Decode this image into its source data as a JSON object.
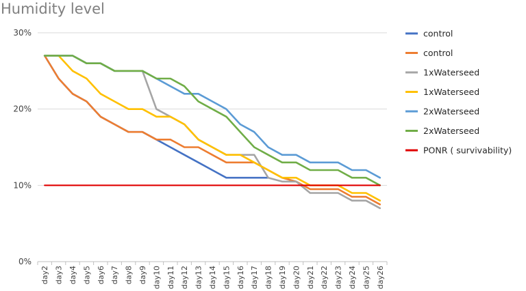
{
  "chart_data": {
    "type": "line",
    "title": "Humidity level",
    "xlabel": "",
    "ylabel": "",
    "ylim": [
      0,
      30
    ],
    "yticks": [
      "0%",
      "10%",
      "20%",
      "30%"
    ],
    "ytick_values": [
      0,
      10,
      20,
      30
    ],
    "grid": true,
    "legend_position": "right",
    "categories": [
      "day2",
      "day3",
      "day4",
      "day5",
      "day6",
      "day7",
      "day8",
      "day9",
      "day10",
      "day11",
      "day12",
      "day13",
      "day14",
      "day15",
      "day16",
      "day17",
      "day18",
      "day19",
      "day20",
      "day21",
      "day22",
      "day23",
      "day24",
      "day25",
      "day26"
    ],
    "series": [
      {
        "name": "control",
        "color": "#4472c4",
        "values": [
          27,
          24,
          22,
          21,
          19,
          18,
          17,
          17,
          16,
          15,
          14,
          13,
          12,
          11,
          11,
          11,
          11,
          null,
          null,
          null,
          null,
          null,
          null,
          null,
          null
        ]
      },
      {
        "name": "control",
        "color": "#ed7d31",
        "values": [
          27,
          24,
          22,
          21,
          19,
          18,
          17,
          17,
          16,
          16,
          15,
          15,
          14,
          13,
          13,
          13,
          12,
          11,
          10.5,
          9.5,
          9.5,
          9.5,
          8.5,
          8.5,
          7.5
        ]
      },
      {
        "name": "1xWaterseed",
        "color": "#a5a5a5",
        "values": [
          27,
          27,
          27,
          26,
          26,
          25,
          25,
          25,
          20,
          19,
          18,
          16,
          15,
          14,
          14,
          14,
          11,
          10.5,
          10.5,
          9,
          9,
          9,
          8,
          8,
          7
        ]
      },
      {
        "name": "1xWaterseed",
        "color": "#ffc000",
        "values": [
          27,
          27,
          25,
          24,
          22,
          21,
          20,
          20,
          19,
          19,
          18,
          16,
          15,
          14,
          14,
          13,
          12,
          11,
          11,
          10,
          10,
          10,
          9,
          9,
          8
        ]
      },
      {
        "name": "2xWaterseed",
        "color": "#5b9bd5",
        "values": [
          27,
          27,
          27,
          26,
          26,
          25,
          25,
          25,
          24,
          23,
          22,
          22,
          21,
          20,
          18,
          17,
          15,
          14,
          14,
          13,
          13,
          13,
          12,
          12,
          11
        ]
      },
      {
        "name": "2xWaterseed",
        "color": "#70ad47",
        "values": [
          27,
          27,
          27,
          26,
          26,
          25,
          25,
          25,
          24,
          24,
          23,
          21,
          20,
          19,
          17,
          15,
          14,
          13,
          13,
          12,
          12,
          12,
          11,
          11,
          10
        ]
      },
      {
        "name": "PONR ( survivability)",
        "color": "#e00000",
        "values": [
          10,
          10,
          10,
          10,
          10,
          10,
          10,
          10,
          10,
          10,
          10,
          10,
          10,
          10,
          10,
          10,
          10,
          10,
          10,
          10,
          10,
          10,
          10,
          10,
          10
        ]
      }
    ]
  }
}
